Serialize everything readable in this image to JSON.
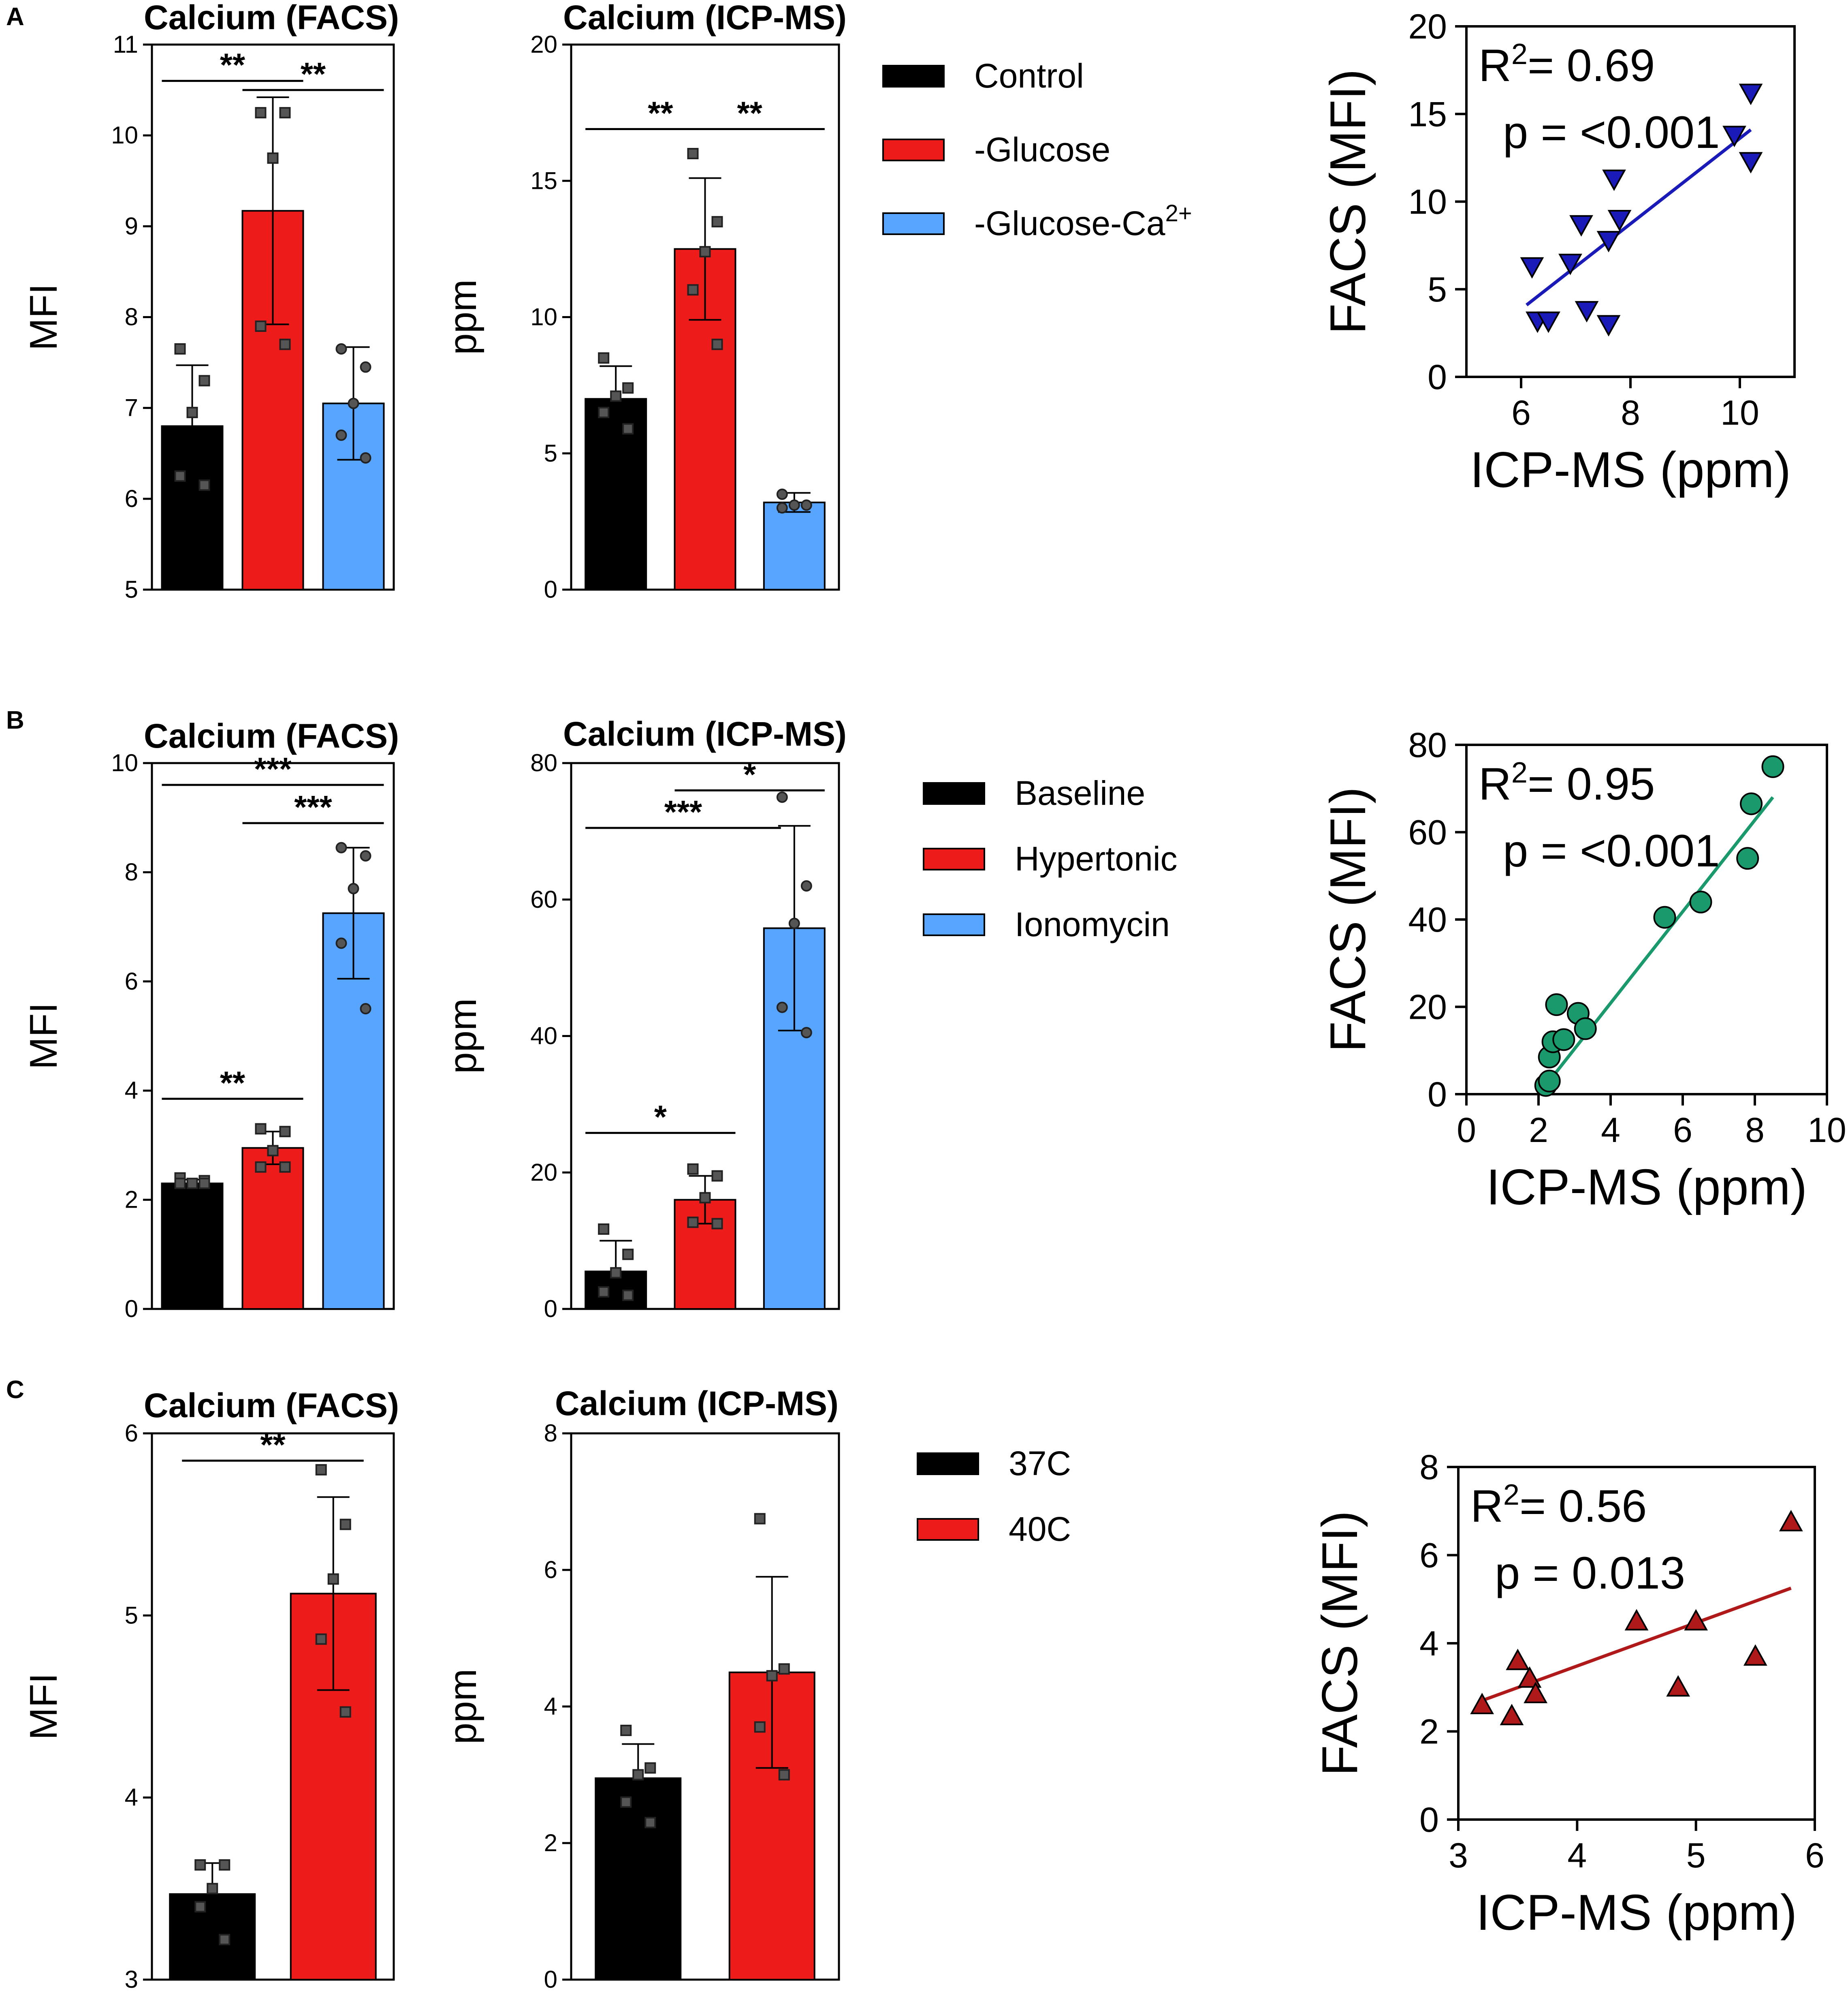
{
  "panels": [
    {
      "label": "A",
      "legend": [
        {
          "name": "Control",
          "color": "#000000"
        },
        {
          "name": "-Glucose",
          "color": "#ee1b1b"
        },
        {
          "name": "-Glucose-Ca",
          "sup": "2+",
          "color": "#58a5ff"
        }
      ],
      "bar_charts": [
        {
          "type": "bar",
          "title": "Calcium (FACS)",
          "ylabel": "MFI",
          "ylim": [
            5,
            11
          ],
          "yticks": [
            5,
            6,
            7,
            8,
            9,
            10,
            11
          ],
          "bars": [
            {
              "group": "Control",
              "mean": 6.8,
              "sd": 0.67,
              "points": [
                7.65,
                7.3,
                6.95,
                6.25,
                6.15
              ],
              "marker": "square"
            },
            {
              "group": "-Glucose",
              "mean": 9.17,
              "sd": 1.25,
              "points": [
                10.25,
                10.25,
                9.75,
                7.9,
                7.7
              ],
              "marker": "square"
            },
            {
              "group": "-Glucose-Ca2+",
              "mean": 7.05,
              "sd": 0.62,
              "points": [
                7.65,
                7.45,
                7.05,
                6.7,
                6.45
              ],
              "marker": "circle"
            }
          ],
          "significance": [
            {
              "from": 0,
              "to": 1,
              "label": "**",
              "y": 10.6
            },
            {
              "from": 1,
              "to": 2,
              "label": "**",
              "y": 10.5
            }
          ]
        },
        {
          "type": "bar",
          "title": "Calcium (ICP-MS)",
          "ylabel": "ppm",
          "ylim": [
            0,
            20
          ],
          "yticks": [
            0,
            5,
            10,
            15,
            20
          ],
          "bars": [
            {
              "group": "Control",
              "mean": 7.0,
              "sd": 1.2,
              "points": [
                8.5,
                7.4,
                7.1,
                6.5,
                5.9
              ],
              "marker": "square"
            },
            {
              "group": "-Glucose",
              "mean": 12.5,
              "sd": 2.6,
              "points": [
                16.0,
                13.5,
                12.4,
                11.0,
                9.0
              ],
              "marker": "square"
            },
            {
              "group": "-Glucose-Ca2+",
              "mean": 3.2,
              "sd": 0.35,
              "points": [
                3.5,
                3.1,
                3.1,
                3.0
              ],
              "marker": "circle"
            }
          ],
          "significance": [
            {
              "from": 0,
              "to": 1,
              "label": "**",
              "y": 16.9
            },
            {
              "from": 1,
              "to": 2,
              "label": "**",
              "y": 16.9
            }
          ]
        }
      ],
      "scatter": {
        "type": "scatter",
        "xlabel": "ICP-MS (ppm)",
        "ylabel": "FACS (MFI)",
        "xlim": [
          5,
          11
        ],
        "ylim": [
          0,
          20
        ],
        "xticks": [
          6,
          8,
          10
        ],
        "yticks": [
          0,
          5,
          10,
          15,
          20
        ],
        "color": "#1a1ab8",
        "line_color": "#1a1ab8",
        "marker": "down-triangle",
        "r2": "0.69",
        "p": "<0.001",
        "p_op": "=",
        "points": [
          [
            6.2,
            6.3
          ],
          [
            6.3,
            3.2
          ],
          [
            6.5,
            3.2
          ],
          [
            6.9,
            6.5
          ],
          [
            7.1,
            8.7
          ],
          [
            7.2,
            3.8
          ],
          [
            7.6,
            3.0
          ],
          [
            7.6,
            7.8
          ],
          [
            7.7,
            11.3
          ],
          [
            7.8,
            9.0
          ],
          [
            9.9,
            13.8
          ],
          [
            10.2,
            16.2
          ],
          [
            10.2,
            12.3
          ]
        ],
        "fit": [
          [
            6.1,
            4.1
          ],
          [
            10.2,
            14.1
          ]
        ]
      }
    },
    {
      "label": "B",
      "legend": [
        {
          "name": "Baseline",
          "color": "#000000"
        },
        {
          "name": "Hypertonic",
          "color": "#ee1b1b"
        },
        {
          "name": "Ionomycin",
          "color": "#58a5ff"
        }
      ],
      "bar_charts": [
        {
          "type": "bar",
          "title": "Calcium (FACS)",
          "ylabel": "MFI",
          "ylim": [
            0,
            10
          ],
          "yticks": [
            0,
            2,
            4,
            6,
            8,
            10
          ],
          "bars": [
            {
              "group": "Baseline",
              "mean": 2.3,
              "sd": 0.07,
              "points": [
                2.4,
                2.35,
                2.3,
                2.3,
                2.3
              ],
              "marker": "square"
            },
            {
              "group": "Hypertonic",
              "mean": 2.95,
              "sd": 0.3,
              "points": [
                3.3,
                3.25,
                2.9,
                2.6,
                2.6
              ],
              "marker": "square"
            },
            {
              "group": "Ionomycin",
              "mean": 7.25,
              "sd": 1.2,
              "points": [
                8.45,
                8.3,
                7.7,
                6.7,
                5.5
              ],
              "marker": "circle"
            }
          ],
          "significance": [
            {
              "from": 0,
              "to": 2,
              "label": "***",
              "y": 9.6
            },
            {
              "from": 1,
              "to": 2,
              "label": "***",
              "y": 8.9
            },
            {
              "from": 0,
              "to": 1,
              "label": "**",
              "y": 3.85
            }
          ]
        },
        {
          "type": "bar",
          "title": "Calcium (ICP-MS)",
          "ylabel": "ppm",
          "ylim": [
            0,
            80
          ],
          "yticks": [
            0,
            20,
            40,
            60,
            80
          ],
          "bars": [
            {
              "group": "Baseline",
              "mean": 5.5,
              "sd": 4.5,
              "points": [
                11.7,
                8.0,
                5.3,
                2.5,
                2.0
              ],
              "marker": "square"
            },
            {
              "group": "Hypertonic",
              "mean": 16.0,
              "sd": 3.5,
              "points": [
                20.5,
                19.5,
                16.3,
                12.7,
                12.5
              ],
              "marker": "square"
            },
            {
              "group": "Ionomycin",
              "mean": 55.8,
              "sd": 15.0,
              "points": [
                75.0,
                62.0,
                56.5,
                44.2,
                40.5
              ],
              "marker": "circle"
            }
          ],
          "significance": [
            {
              "from": 0,
              "to": 1,
              "label": "*",
              "y": 25.8
            },
            {
              "from": 0,
              "to": 1.85,
              "label": "***",
              "y": 70.5
            },
            {
              "from": 1,
              "to": 2,
              "label": "*",
              "y": 76.0
            }
          ]
        }
      ],
      "scatter": {
        "type": "scatter",
        "xlabel": "ICP-MS (ppm)",
        "ylabel": "FACS (MFI)",
        "xlim": [
          0,
          10
        ],
        "ylim": [
          0,
          80
        ],
        "xticks": [
          0,
          2,
          4,
          6,
          8,
          10
        ],
        "yticks": [
          0,
          20,
          40,
          60,
          80
        ],
        "color": "#1a9a6c",
        "line_color": "#1a9a6c",
        "marker": "circle",
        "r2": "0.95",
        "p": "<0.001",
        "p_op": "=",
        "points": [
          [
            2.2,
            2.0
          ],
          [
            2.3,
            3.0
          ],
          [
            2.3,
            8.5
          ],
          [
            2.4,
            12.0
          ],
          [
            2.5,
            20.5
          ],
          [
            2.7,
            12.5
          ],
          [
            3.1,
            18.5
          ],
          [
            3.3,
            15.0
          ],
          [
            5.5,
            40.5
          ],
          [
            6.5,
            44.0
          ],
          [
            7.8,
            54.0
          ],
          [
            7.9,
            66.5
          ],
          [
            8.5,
            75.0
          ]
        ],
        "fit": [
          [
            2.2,
            2.0
          ],
          [
            8.5,
            68.0
          ]
        ]
      }
    },
    {
      "label": "C",
      "legend": [
        {
          "name": "37C",
          "color": "#000000"
        },
        {
          "name": "40C",
          "color": "#ee1b1b"
        }
      ],
      "bar_charts": [
        {
          "type": "bar",
          "title": "Calcium (FACS)",
          "ylabel": "MFI",
          "ylim": [
            3,
            6
          ],
          "yticks": [
            3,
            4,
            5,
            6
          ],
          "bars": [
            {
              "group": "37C",
              "mean": 3.47,
              "sd": 0.17,
              "points": [
                3.63,
                3.63,
                3.5,
                3.4,
                3.22
              ],
              "marker": "square"
            },
            {
              "group": "40C",
              "mean": 5.12,
              "sd": 0.53,
              "points": [
                5.8,
                5.5,
                5.2,
                4.87,
                4.47
              ],
              "marker": "square"
            }
          ],
          "significance": [
            {
              "from": 0,
              "to": 1,
              "label": "**",
              "y": 5.85
            }
          ]
        },
        {
          "type": "bar",
          "title": "Calcium (ICP-MS)",
          "ylabel": "ppm",
          "ylim": [
            0,
            8
          ],
          "yticks": [
            0,
            2,
            4,
            6,
            8
          ],
          "bars": [
            {
              "group": "37C",
              "mean": 2.95,
              "sd": 0.5,
              "points": [
                3.65,
                3.1,
                3.0,
                2.6,
                2.3
              ],
              "marker": "square"
            },
            {
              "group": "40C",
              "mean": 4.5,
              "sd": 1.4,
              "points": [
                6.75,
                4.55,
                4.45,
                3.7,
                3.0
              ],
              "marker": "square"
            }
          ],
          "significance": []
        }
      ],
      "scatter": {
        "type": "scatter",
        "xlabel": "ICP-MS (ppm)",
        "ylabel": "FACS (MFI)",
        "xlim": [
          3,
          6
        ],
        "ylim": [
          0,
          8
        ],
        "xticks": [
          3,
          4,
          5,
          6
        ],
        "yticks": [
          0,
          2,
          4,
          6,
          8
        ],
        "color": "#b01919",
        "line_color": "#b01919",
        "marker": "up-triangle",
        "r2": "0.56",
        "p": "0.013",
        "p_op": "=",
        "points": [
          [
            3.2,
            2.6
          ],
          [
            3.45,
            2.35
          ],
          [
            3.5,
            3.6
          ],
          [
            3.6,
            3.2
          ],
          [
            3.65,
            2.85
          ],
          [
            4.5,
            4.5
          ],
          [
            4.85,
            3.0
          ],
          [
            5.0,
            4.5
          ],
          [
            5.5,
            3.7
          ],
          [
            5.8,
            6.75
          ]
        ],
        "fit": [
          [
            3.2,
            2.7
          ],
          [
            5.8,
            5.25
          ]
        ]
      }
    }
  ]
}
